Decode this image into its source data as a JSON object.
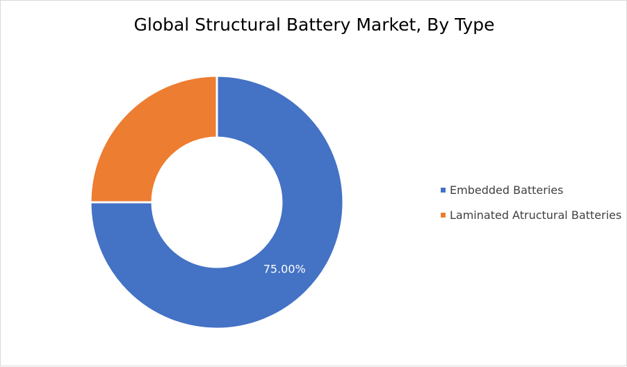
{
  "chart_data": {
    "type": "pie",
    "title": "Global Structural Battery Market, By Type",
    "categories": [
      "Embedded Batteries",
      "Laminated Atructural Batteries"
    ],
    "values": [
      75,
      25
    ],
    "data_labels": [
      "75.00%",
      ""
    ],
    "colors": [
      "#4472c4",
      "#ed7d31"
    ],
    "donut": true,
    "legend_position": "right"
  }
}
